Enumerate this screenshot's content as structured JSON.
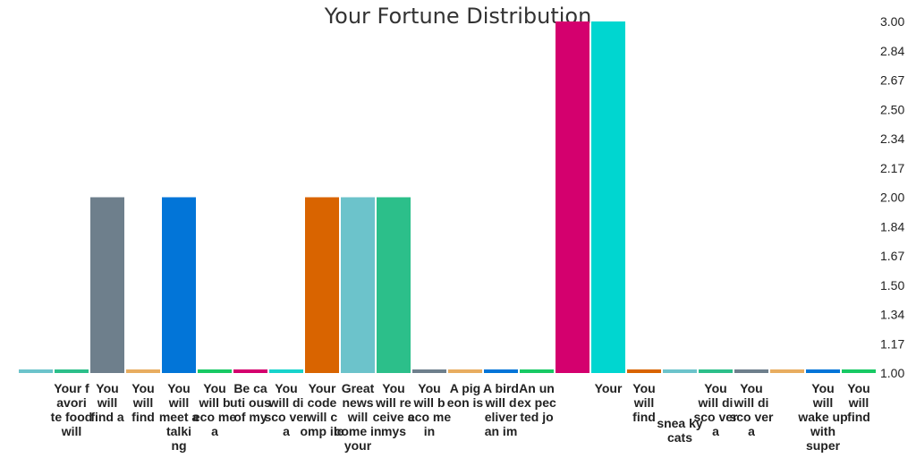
{
  "chart_data": {
    "type": "bar",
    "title": "Your Fortune Distribution",
    "xlabel": "",
    "ylabel": "",
    "ylim": [
      1.0,
      3.0
    ],
    "yticks": [
      "1.00",
      "1.17",
      "1.34",
      "1.50",
      "1.67",
      "1.84",
      "2.00",
      "2.17",
      "2.34",
      "2.50",
      "2.67",
      "2.84",
      "3.00"
    ],
    "categories": [
      "",
      "Your f avori te food will",
      "You will find a",
      "You will find",
      "You will meet a talki ng",
      "You will b eco me a",
      "Be ca uti ous of my",
      "You will di sco ver a",
      "Your code will c omp ile",
      "Great news will come in your",
      "You will re ceive a mys",
      "You will b eco me in",
      "A pig eon is",
      "A bird will d eliver an im",
      "An un ex pec ted jo",
      "",
      "Your",
      "You will find",
      "snea ky cats",
      "You will di sco ver a",
      "You will di sco ver a",
      "",
      "You will wake up with super",
      "You will find"
    ],
    "values": [
      1,
      1,
      2,
      1,
      2,
      1,
      1,
      1,
      2,
      2,
      2,
      1,
      1,
      1,
      1,
      3,
      3,
      1,
      1,
      1,
      1,
      1,
      1,
      1
    ],
    "colors": [
      "#6cc3cb",
      "#2cbf8a",
      "#6e7f8c",
      "#e8ad60",
      "#0275d8",
      "#17c964",
      "#d4006e",
      "#17d3cc",
      "#d96400",
      "#6cc3cb",
      "#2cbf8a",
      "#6e7f8c",
      "#e8ad60",
      "#0275d8",
      "#17c964",
      "#d4006e",
      "#00d6d0",
      "#d96400",
      "#6cc3cb",
      "#2cbf8a",
      "#6e7f8c",
      "#e8ad60",
      "#0275d8",
      "#17c964"
    ]
  }
}
